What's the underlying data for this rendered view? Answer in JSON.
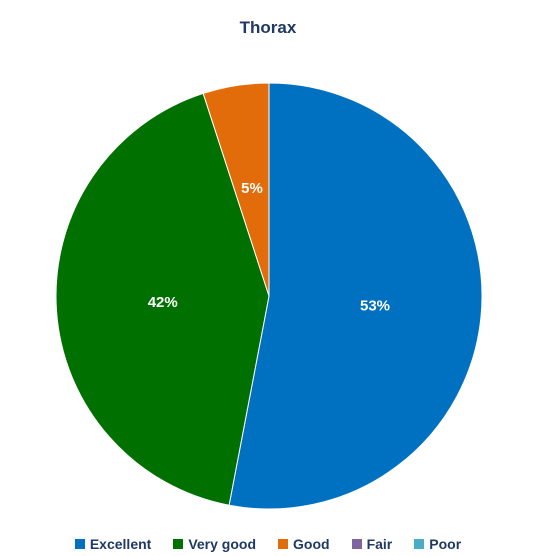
{
  "chart_data": {
    "type": "pie",
    "title": "Thorax",
    "categories": [
      "Excellent",
      "Very good",
      "Good",
      "Fair",
      "Poor"
    ],
    "values": [
      53,
      42,
      5,
      0,
      0
    ],
    "data_labels": [
      "53%",
      "42%",
      "5%",
      "",
      ""
    ],
    "unit": "%",
    "colors": [
      "#0070c0",
      "#007000",
      "#e36c0a",
      "#8064a2",
      "#4bacc6"
    ],
    "legend_position": "bottom",
    "start_angle": "12 o'clock",
    "direction": "clockwise"
  }
}
